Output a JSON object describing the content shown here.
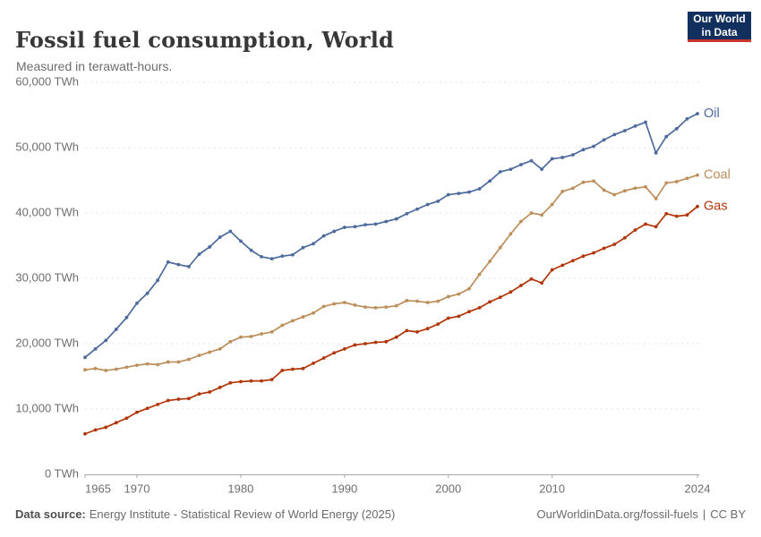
{
  "header": {
    "title": "Fossil fuel consumption, World",
    "subtitle": "Measured in terawatt-hours."
  },
  "logo": {
    "line1": "Our World",
    "line2": "in Data",
    "bg_color": "#12305E",
    "accent_color": "#C8352D"
  },
  "footer": {
    "source_label": "Data source:",
    "source_text": "Energy Institute - Statistical Review of World Energy (2025)",
    "link_text": "OurWorldinData.org/fossil-fuels",
    "separator": "|",
    "license_text": "CC BY"
  },
  "chart_data": {
    "type": "line",
    "title": "Fossil fuel consumption, World",
    "subtitle": "Measured in terawatt-hours.",
    "xlabel": "",
    "ylabel": "TWh",
    "xlim": [
      1965,
      2024
    ],
    "ylim": [
      0,
      60000
    ],
    "grid": "horizontal-dashed",
    "grid_color": "#e3e3e3",
    "axis_color": "#a7a7a7",
    "tick_text_color": "#6e6e6e",
    "legend_position": "line-end-labels",
    "x_ticks": [
      {
        "value": 1965,
        "label": "1965",
        "align": "start"
      },
      {
        "value": 1970,
        "label": "1970"
      },
      {
        "value": 1980,
        "label": "1980"
      },
      {
        "value": 1990,
        "label": "1990"
      },
      {
        "value": 2000,
        "label": "2000"
      },
      {
        "value": 2010,
        "label": "2010"
      },
      {
        "value": 2024,
        "label": "2024"
      }
    ],
    "y_ticks": [
      {
        "value": 0,
        "label": "0 TWh"
      },
      {
        "value": 10000,
        "label": "10,000 TWh"
      },
      {
        "value": 20000,
        "label": "20,000 TWh"
      },
      {
        "value": 30000,
        "label": "30,000 TWh"
      },
      {
        "value": 40000,
        "label": "40,000 TWh"
      },
      {
        "value": 50000,
        "label": "50,000 TWh"
      },
      {
        "value": 60000,
        "label": "60,000 TWh"
      }
    ],
    "x": [
      1965,
      1966,
      1967,
      1968,
      1969,
      1970,
      1971,
      1972,
      1973,
      1974,
      1975,
      1976,
      1977,
      1978,
      1979,
      1980,
      1981,
      1982,
      1983,
      1984,
      1985,
      1986,
      1987,
      1988,
      1989,
      1990,
      1991,
      1992,
      1993,
      1994,
      1995,
      1996,
      1997,
      1998,
      1999,
      2000,
      2001,
      2002,
      2003,
      2004,
      2005,
      2006,
      2007,
      2008,
      2009,
      2010,
      2011,
      2012,
      2013,
      2014,
      2015,
      2016,
      2017,
      2018,
      2019,
      2020,
      2021,
      2022,
      2023,
      2024
    ],
    "series": [
      {
        "name": "Oil",
        "color": "#4C6A9C",
        "values": [
          17900,
          19200,
          20500,
          22200,
          24000,
          26200,
          27700,
          29700,
          32500,
          32100,
          31800,
          33700,
          34800,
          36300,
          37200,
          35700,
          34300,
          33300,
          33000,
          33400,
          33600,
          34700,
          35300,
          36500,
          37200,
          37800,
          37900,
          38200,
          38300,
          38700,
          39100,
          39900,
          40600,
          41300,
          41800,
          42800,
          43000,
          43200,
          43700,
          44900,
          46300,
          46700,
          47400,
          48000,
          46700,
          48300,
          48500,
          48900,
          49700,
          50200,
          51200,
          52000,
          52600,
          53300,
          53900,
          49200,
          51700,
          52900,
          54400,
          55200
        ]
      },
      {
        "name": "Coal",
        "color": "#BC8E5A",
        "values": [
          16000,
          16200,
          15900,
          16100,
          16400,
          16700,
          16900,
          16800,
          17200,
          17200,
          17600,
          18200,
          18700,
          19200,
          20300,
          21000,
          21100,
          21500,
          21800,
          22800,
          23500,
          24100,
          24700,
          25700,
          26100,
          26300,
          25900,
          25600,
          25500,
          25600,
          25800,
          26600,
          26500,
          26300,
          26500,
          27200,
          27600,
          28400,
          30600,
          32600,
          34700,
          36800,
          38700,
          40000,
          39700,
          41300,
          43300,
          43800,
          44700,
          44900,
          43500,
          42800,
          43400,
          43800,
          44000,
          42200,
          44600,
          44800,
          45300,
          45800
        ]
      },
      {
        "name": "Gas",
        "color": "#B13507",
        "values": [
          6200,
          6800,
          7200,
          7900,
          8600,
          9500,
          10100,
          10700,
          11300,
          11500,
          11600,
          12300,
          12600,
          13300,
          14000,
          14200,
          14300,
          14300,
          14500,
          15900,
          16100,
          16200,
          17000,
          17800,
          18600,
          19200,
          19800,
          20000,
          20200,
          20300,
          21000,
          22000,
          21800,
          22300,
          23000,
          23900,
          24200,
          24900,
          25500,
          26400,
          27100,
          27900,
          28900,
          29900,
          29300,
          31300,
          32000,
          32700,
          33400,
          33900,
          34600,
          35200,
          36200,
          37400,
          38300,
          37900,
          39900,
          39500,
          39700,
          41000
        ]
      }
    ]
  }
}
